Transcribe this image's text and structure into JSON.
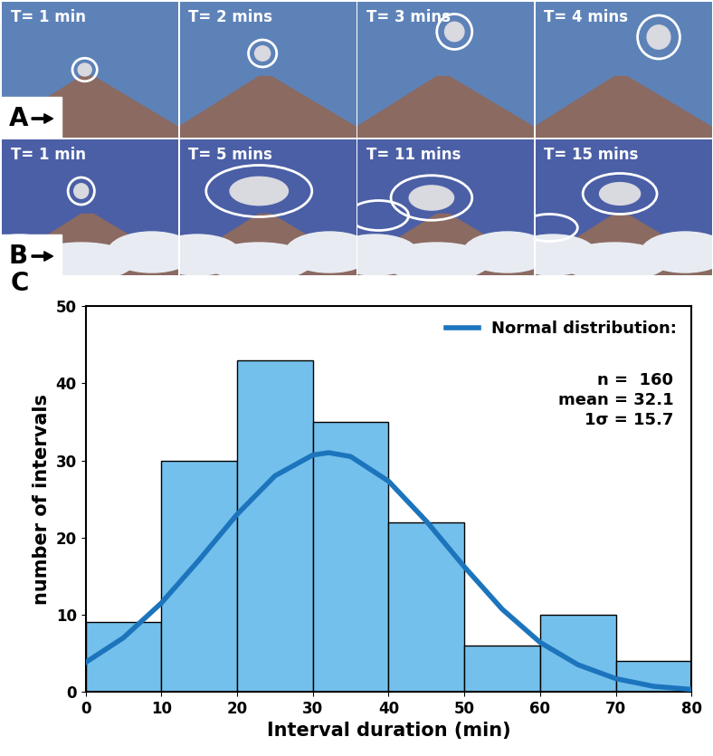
{
  "photo_rows": [
    {
      "label": "A",
      "frames": [
        "T= 1 min",
        "T= 2 mins",
        "T= 3 mins",
        "T= 4 mins"
      ]
    },
    {
      "label": "B",
      "frames": [
        "T= 1 min",
        "T= 5 mins",
        "T= 11 mins",
        "T= 15 mins"
      ]
    }
  ],
  "chart_data": {
    "type": "histogram",
    "panel_label": "C",
    "x_label": "Interval duration (min)",
    "y_label": "number of intervals",
    "bins": [
      0,
      10,
      20,
      30,
      40,
      50,
      60,
      70,
      80
    ],
    "counts": [
      9,
      30,
      43,
      35,
      22,
      6,
      10,
      4
    ],
    "color": "#74c0ec",
    "series": [
      {
        "name": "Normal distribution:",
        "type": "line",
        "color": "#1c75bc",
        "x": [
          0,
          5,
          10,
          15,
          20,
          25,
          30,
          32.1,
          35,
          40,
          45,
          50,
          55,
          60,
          65,
          70,
          75,
          80
        ],
        "values": [
          3.8,
          7.0,
          11.5,
          17.1,
          23.0,
          28.0,
          30.7,
          31.0,
          30.5,
          27.3,
          22.1,
          16.2,
          10.7,
          6.4,
          3.5,
          1.7,
          0.7,
          0.3
        ]
      }
    ],
    "legend": "upper right",
    "annotations": [
      "n =  160",
      "mean = 32.1",
      "1σ = 15.7"
    ],
    "xlim": [
      0,
      80
    ],
    "ylim": [
      0,
      50
    ],
    "xticks": [
      0,
      10,
      20,
      30,
      40,
      50,
      60,
      70,
      80
    ],
    "yticks": [
      0,
      10,
      20,
      30,
      40,
      50
    ],
    "grid": false
  }
}
